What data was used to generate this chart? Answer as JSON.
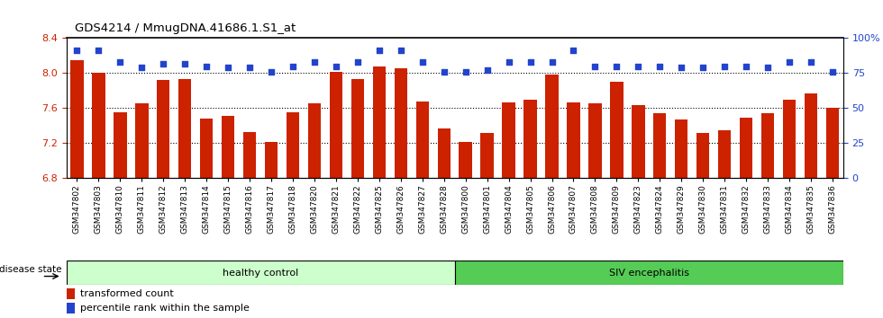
{
  "title": "GDS4214 / MmugDNA.41686.1.S1_at",
  "samples": [
    "GSM347802",
    "GSM347803",
    "GSM347810",
    "GSM347811",
    "GSM347812",
    "GSM347813",
    "GSM347814",
    "GSM347815",
    "GSM347816",
    "GSM347817",
    "GSM347818",
    "GSM347820",
    "GSM347821",
    "GSM347822",
    "GSM347825",
    "GSM347826",
    "GSM347827",
    "GSM347828",
    "GSM347800",
    "GSM347801",
    "GSM347804",
    "GSM347805",
    "GSM347806",
    "GSM347807",
    "GSM347808",
    "GSM347809",
    "GSM347823",
    "GSM347824",
    "GSM347829",
    "GSM347830",
    "GSM347831",
    "GSM347832",
    "GSM347833",
    "GSM347834",
    "GSM347835",
    "GSM347836"
  ],
  "bar_values": [
    8.15,
    8.0,
    7.55,
    7.65,
    7.92,
    7.93,
    7.48,
    7.51,
    7.33,
    7.21,
    7.55,
    7.65,
    8.01,
    7.93,
    8.08,
    8.06,
    7.68,
    7.37,
    7.21,
    7.32,
    7.67,
    7.7,
    7.98,
    7.67,
    7.65,
    7.9,
    7.63,
    7.54,
    7.47,
    7.32,
    7.35,
    7.49,
    7.54,
    7.7,
    7.77,
    7.6
  ],
  "percentile_values": [
    91,
    91,
    83,
    79,
    82,
    82,
    80,
    79,
    79,
    76,
    80,
    83,
    80,
    83,
    91,
    91,
    83,
    76,
    76,
    77,
    83,
    83,
    83,
    91,
    80,
    80,
    80,
    80,
    79,
    79,
    80,
    80,
    79,
    83,
    83,
    76
  ],
  "ylim_left": [
    6.8,
    8.4
  ],
  "ylim_right": [
    0,
    100
  ],
  "yticks_left": [
    6.8,
    7.2,
    7.6,
    8.0,
    8.4
  ],
  "yticks_right": [
    0,
    25,
    50,
    75,
    100
  ],
  "ytick_labels_right": [
    "0",
    "25",
    "50",
    "75",
    "100%"
  ],
  "bar_color": "#cc2200",
  "dot_color": "#2244cc",
  "healthy_count": 18,
  "healthy_label": "healthy control",
  "siv_label": "SIV encephalitis",
  "healthy_color": "#ccffcc",
  "siv_color": "#55cc55",
  "disease_state_label": "disease state",
  "legend_bar_label": "transformed count",
  "legend_dot_label": "percentile rank within the sample",
  "bg_color": "#ffffff",
  "tick_label_color_left": "#cc2200",
  "tick_label_color_right": "#2244cc",
  "bar_baseline": 6.8
}
